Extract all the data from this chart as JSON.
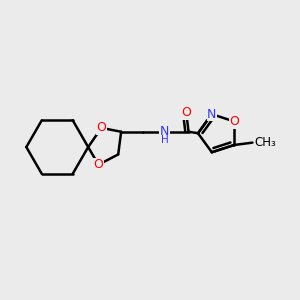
{
  "bg_color": "#ebebeb",
  "bond_color": "#000000",
  "bond_width": 1.8,
  "atom_colors": {
    "O": "#ff0000",
    "N": "#3333ff",
    "C": "#000000",
    "H": "#000000"
  }
}
